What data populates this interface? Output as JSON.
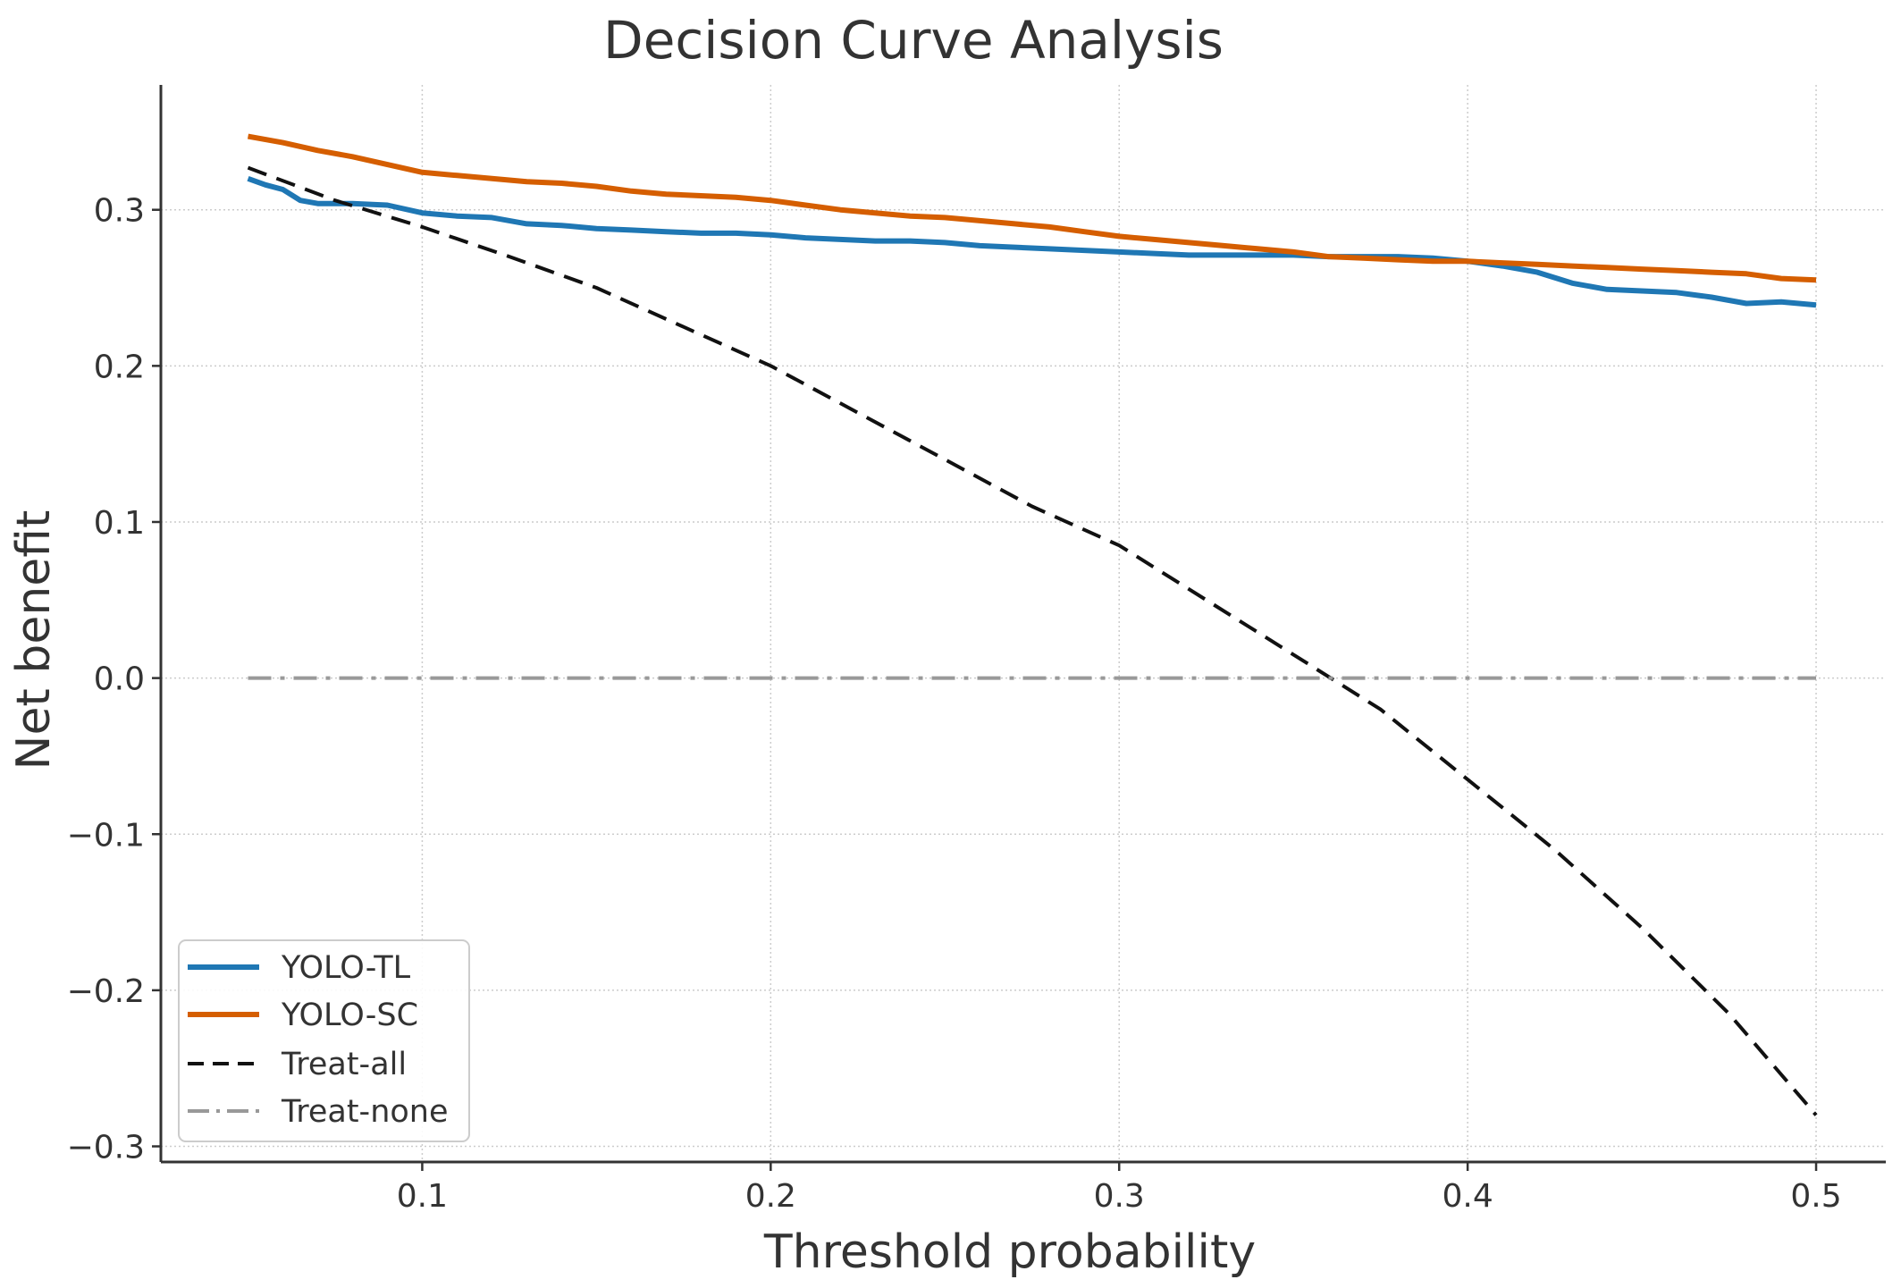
{
  "chart_data": {
    "type": "line",
    "title": "Decision Curve Analysis",
    "xlabel": "Threshold probability",
    "ylabel": "Net benefit",
    "xlim": [
      0.025,
      0.52
    ],
    "ylim": [
      -0.31,
      0.38
    ],
    "xticks": [
      0.1,
      0.2,
      0.3,
      0.4,
      0.5
    ],
    "xtick_labels": [
      "0.1",
      "0.2",
      "0.3",
      "0.4",
      "0.5"
    ],
    "yticks": [
      -0.3,
      -0.2,
      -0.1,
      0.0,
      0.1,
      0.2,
      0.3
    ],
    "ytick_labels": [
      "−0.3",
      "−0.2",
      "−0.1",
      "0.0",
      "0.1",
      "0.2",
      "0.3"
    ],
    "grid": true,
    "legend_position": "lower-left",
    "series": [
      {
        "name": "YOLO-TL",
        "color": "#1f77b4",
        "style": "solid",
        "x": [
          0.05,
          0.055,
          0.06,
          0.065,
          0.07,
          0.08,
          0.09,
          0.1,
          0.11,
          0.12,
          0.13,
          0.14,
          0.15,
          0.16,
          0.17,
          0.18,
          0.19,
          0.2,
          0.21,
          0.22,
          0.23,
          0.24,
          0.25,
          0.26,
          0.27,
          0.28,
          0.29,
          0.3,
          0.31,
          0.32,
          0.33,
          0.34,
          0.35,
          0.36,
          0.37,
          0.38,
          0.39,
          0.4,
          0.41,
          0.42,
          0.43,
          0.44,
          0.45,
          0.46,
          0.47,
          0.48,
          0.49,
          0.5
        ],
        "values": [
          0.32,
          0.316,
          0.313,
          0.306,
          0.304,
          0.304,
          0.303,
          0.298,
          0.296,
          0.295,
          0.291,
          0.29,
          0.288,
          0.287,
          0.286,
          0.285,
          0.285,
          0.284,
          0.282,
          0.281,
          0.28,
          0.28,
          0.279,
          0.277,
          0.276,
          0.275,
          0.274,
          0.273,
          0.272,
          0.271,
          0.271,
          0.271,
          0.271,
          0.27,
          0.27,
          0.27,
          0.269,
          0.267,
          0.264,
          0.26,
          0.253,
          0.249,
          0.248,
          0.247,
          0.244,
          0.24,
          0.241,
          0.239
        ]
      },
      {
        "name": "YOLO-SC",
        "color": "#d55e00",
        "style": "solid",
        "x": [
          0.05,
          0.06,
          0.07,
          0.08,
          0.09,
          0.1,
          0.11,
          0.12,
          0.13,
          0.14,
          0.15,
          0.16,
          0.17,
          0.18,
          0.19,
          0.2,
          0.21,
          0.22,
          0.23,
          0.24,
          0.25,
          0.26,
          0.27,
          0.28,
          0.29,
          0.3,
          0.31,
          0.32,
          0.33,
          0.34,
          0.35,
          0.36,
          0.37,
          0.38,
          0.39,
          0.4,
          0.41,
          0.42,
          0.43,
          0.44,
          0.45,
          0.46,
          0.47,
          0.48,
          0.49,
          0.5
        ],
        "values": [
          0.347,
          0.343,
          0.338,
          0.334,
          0.329,
          0.324,
          0.322,
          0.32,
          0.318,
          0.317,
          0.315,
          0.312,
          0.31,
          0.309,
          0.308,
          0.306,
          0.303,
          0.3,
          0.298,
          0.296,
          0.295,
          0.293,
          0.291,
          0.289,
          0.286,
          0.283,
          0.281,
          0.279,
          0.277,
          0.275,
          0.273,
          0.27,
          0.269,
          0.268,
          0.267,
          0.267,
          0.266,
          0.265,
          0.264,
          0.263,
          0.262,
          0.261,
          0.26,
          0.259,
          0.256,
          0.255
        ]
      },
      {
        "name": "Treat-all",
        "color": "#111111",
        "style": "dashed",
        "x": [
          0.05,
          0.075,
          0.1,
          0.125,
          0.15,
          0.175,
          0.2,
          0.225,
          0.25,
          0.275,
          0.3,
          0.325,
          0.35,
          0.375,
          0.4,
          0.425,
          0.45,
          0.475,
          0.5
        ],
        "values": [
          0.327,
          0.306,
          0.289,
          0.27,
          0.25,
          0.225,
          0.2,
          0.17,
          0.14,
          0.11,
          0.085,
          0.05,
          0.015,
          -0.02,
          -0.065,
          -0.11,
          -0.16,
          -0.215,
          -0.28
        ]
      },
      {
        "name": "Treat-none",
        "color": "#999999",
        "style": "dashdot",
        "x": [
          0.05,
          0.5
        ],
        "values": [
          0.0,
          0.0
        ]
      }
    ]
  }
}
